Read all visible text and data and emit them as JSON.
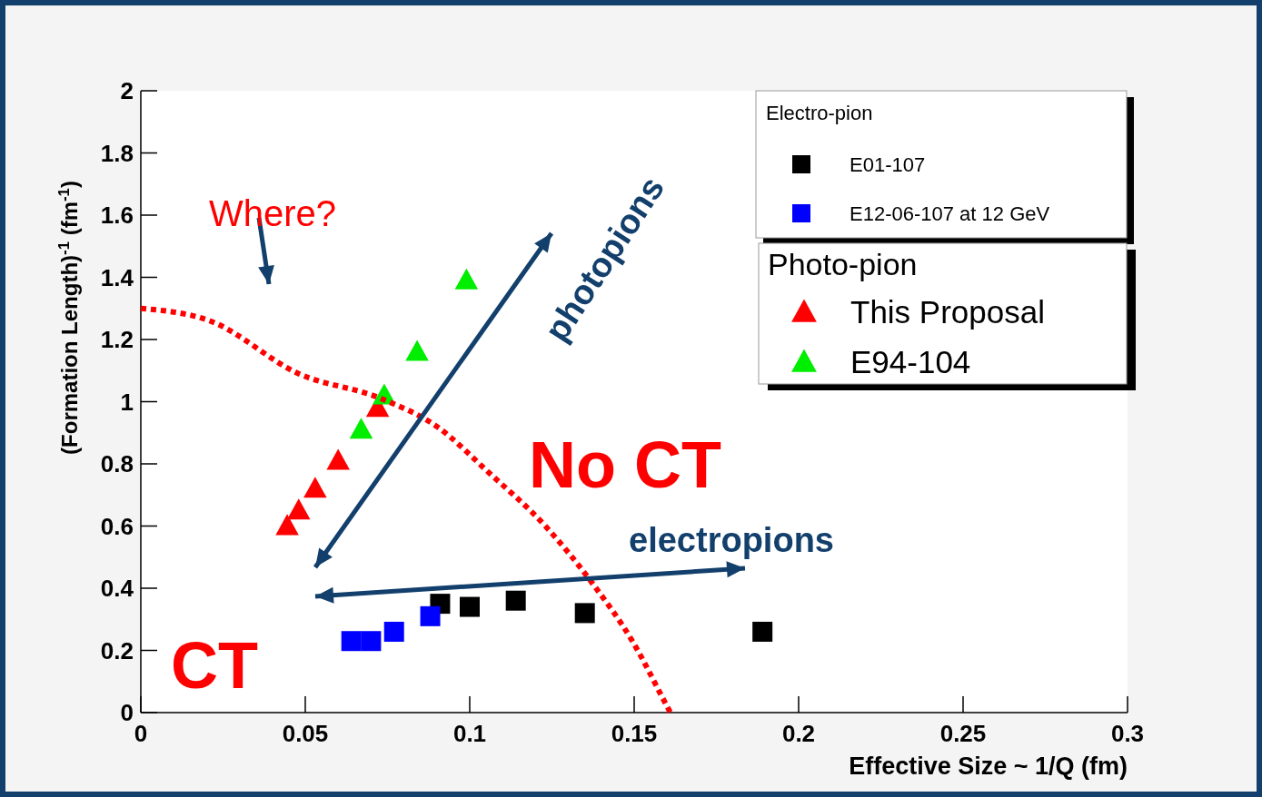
{
  "chart_data": {
    "type": "scatter",
    "xlabel": "Effective Size ~ 1/Q (fm)",
    "ylabel": "(Formation Length)$^{-1}$ (fm$^{-1}$)",
    "xlim": [
      0,
      0.3
    ],
    "xticks": [
      0,
      0.05,
      0.1,
      0.15,
      0.2,
      0.25,
      0.3
    ],
    "ylim": [
      0,
      2
    ],
    "yticks": [
      0,
      0.2,
      0.4,
      0.6,
      0.8,
      1,
      1.2,
      1.4,
      1.6,
      1.8,
      2
    ],
    "legend": "top right",
    "legend_title": "Electro-pion",
    "grid": false,
    "series": [
      {
        "name": "E01-107",
        "color": "#000000",
        "marker": "square",
        "x": [
          0.091,
          0.1,
          0.114,
          0.135,
          0.189
        ],
        "values": [
          0.35,
          0.34,
          0.36,
          0.32,
          0.26
        ]
      },
      {
        "name": "E12-06-107 at 12 GeV",
        "color": "#0000ff",
        "marker": "square",
        "x": [
          0.064,
          0.07,
          0.077,
          0.088
        ],
        "values": [
          0.23,
          0.23,
          0.26,
          0.31
        ]
      },
      {
        "name": "This Proposal",
        "color": "#ff0000",
        "marker": "triangle",
        "x": [
          0.0445,
          0.048,
          0.053,
          0.06,
          0.072
        ],
        "values": [
          0.6,
          0.65,
          0.72,
          0.81,
          0.98
        ]
      },
      {
        "name": "E94-104",
        "color": "#00ee00",
        "marker": "triangle",
        "x": [
          0.067,
          0.074,
          0.084,
          0.099
        ],
        "values": [
          0.91,
          1.02,
          1.16,
          1.39
        ]
      },
      {
        "type": "line",
        "color": "#ff0000",
        "line_style": "dotted",
        "x": [
          0,
          0.021,
          0.048,
          0.073,
          0.09,
          0.106,
          0.123,
          0.137,
          0.15,
          0.159,
          0.161
        ],
        "values": [
          1.3,
          1.26,
          1.09,
          1.01,
          0.92,
          0.77,
          0.6,
          0.42,
          0.22,
          0.04,
          0
        ]
      }
    ],
    "annotations": [
      "Where?",
      "No CT",
      "CT",
      "photopions",
      "electropions",
      "Photo-pion"
    ]
  }
}
